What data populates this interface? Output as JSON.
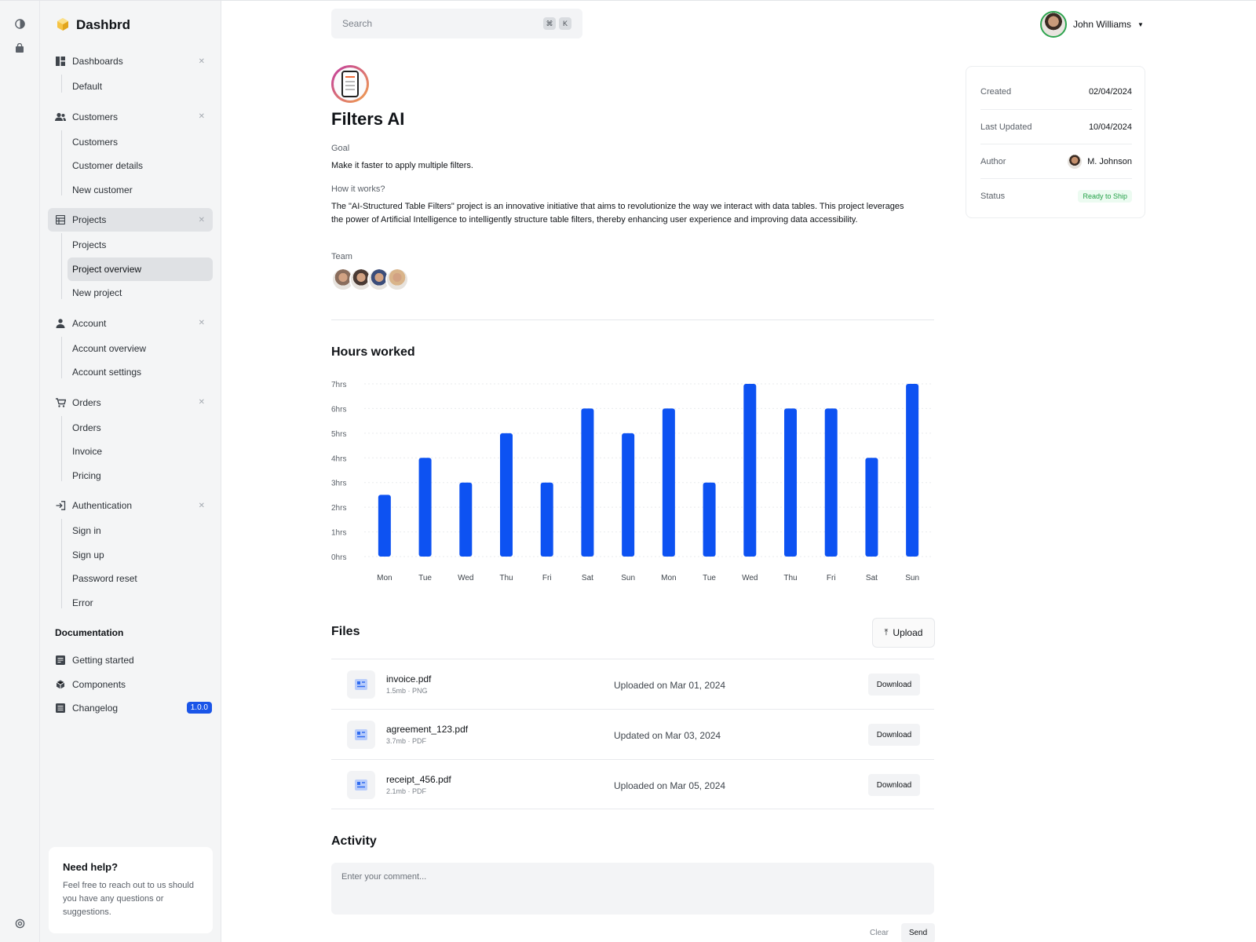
{
  "brand": {
    "name": "Dashbrd"
  },
  "sidebar": {
    "groups": [
      {
        "label": "Dashboards",
        "icon": "dashboard-icon",
        "items": [
          "Default"
        ]
      },
      {
        "label": "Customers",
        "icon": "users-icon",
        "items": [
          "Customers",
          "Customer details",
          "New customer"
        ]
      },
      {
        "label": "Projects",
        "icon": "table-icon",
        "items": [
          "Projects",
          "Project overview",
          "New project"
        ]
      },
      {
        "label": "Account",
        "icon": "person-icon",
        "items": [
          "Account overview",
          "Account settings"
        ]
      },
      {
        "label": "Orders",
        "icon": "cart-icon",
        "items": [
          "Orders",
          "Invoice",
          "Pricing"
        ]
      },
      {
        "label": "Authentication",
        "icon": "login-icon",
        "items": [
          "Sign in",
          "Sign up",
          "Password reset",
          "Error"
        ]
      }
    ],
    "documentation": {
      "title": "Documentation",
      "items": [
        {
          "label": "Getting started",
          "icon": "article-icon"
        },
        {
          "label": "Components",
          "icon": "cube-icon"
        },
        {
          "label": "Changelog",
          "icon": "list-icon",
          "badge": "1.0.0"
        }
      ]
    },
    "help": {
      "title": "Need help?",
      "text": "Feel free to reach out to us should you have any questions or suggestions."
    }
  },
  "topbar": {
    "search_placeholder": "Search",
    "shortcut": [
      "⌘",
      "K"
    ],
    "user_name": "John Williams"
  },
  "project": {
    "title": "Filters AI",
    "goal_label": "Goal",
    "goal": "Make it faster to apply multiple filters.",
    "how_label": "How it works?",
    "how": "The \"AI-Structured Table Filters\" project is an innovative initiative that aims to revolutionize the way we interact with data tables. This project leverages the power of Artificial Intelligence to intelligently structure table filters, thereby enhancing user experience and improving data accessibility.",
    "team_label": "Team",
    "team_colors": [
      "#8a6d5c",
      "#4a3a34",
      "#3b4d7a",
      "#d9b48a"
    ]
  },
  "info": {
    "created_label": "Created",
    "created": "02/04/2024",
    "updated_label": "Last Updated",
    "updated": "10/04/2024",
    "author_label": "Author",
    "author": "M. Johnson",
    "status_label": "Status",
    "status": "Ready to Ship"
  },
  "chart_data": {
    "type": "bar",
    "title": "Hours worked",
    "categories": [
      "Mon",
      "Tue",
      "Wed",
      "Thu",
      "Fri",
      "Sat",
      "Sun",
      "Mon",
      "Tue",
      "Wed",
      "Thu",
      "Fri",
      "Sat",
      "Sun"
    ],
    "values": [
      2.5,
      4,
      3,
      5,
      3,
      6,
      5,
      6,
      3,
      7,
      6,
      6,
      4,
      7
    ],
    "yticks": [
      "0hrs",
      "1hrs",
      "2hrs",
      "3hrs",
      "4hrs",
      "5hrs",
      "6hrs",
      "7hrs"
    ],
    "ylim": [
      0,
      7
    ],
    "color": "#0d52f2",
    "grid": true
  },
  "files": {
    "title": "Files",
    "upload_label": "Upload",
    "download_label": "Download",
    "items": [
      {
        "name": "invoice.pdf",
        "meta": "1.5mb · PNG",
        "date": "Uploaded on Mar 01, 2024"
      },
      {
        "name": "agreement_123.pdf",
        "meta": "3.7mb · PDF",
        "date": "Updated on Mar 03, 2024"
      },
      {
        "name": "receipt_456.pdf",
        "meta": "2.1mb · PDF",
        "date": "Uploaded on Mar 05, 2024"
      }
    ]
  },
  "activity": {
    "title": "Activity",
    "placeholder": "Enter your comment...",
    "clear_label": "Clear",
    "send_label": "Send"
  }
}
